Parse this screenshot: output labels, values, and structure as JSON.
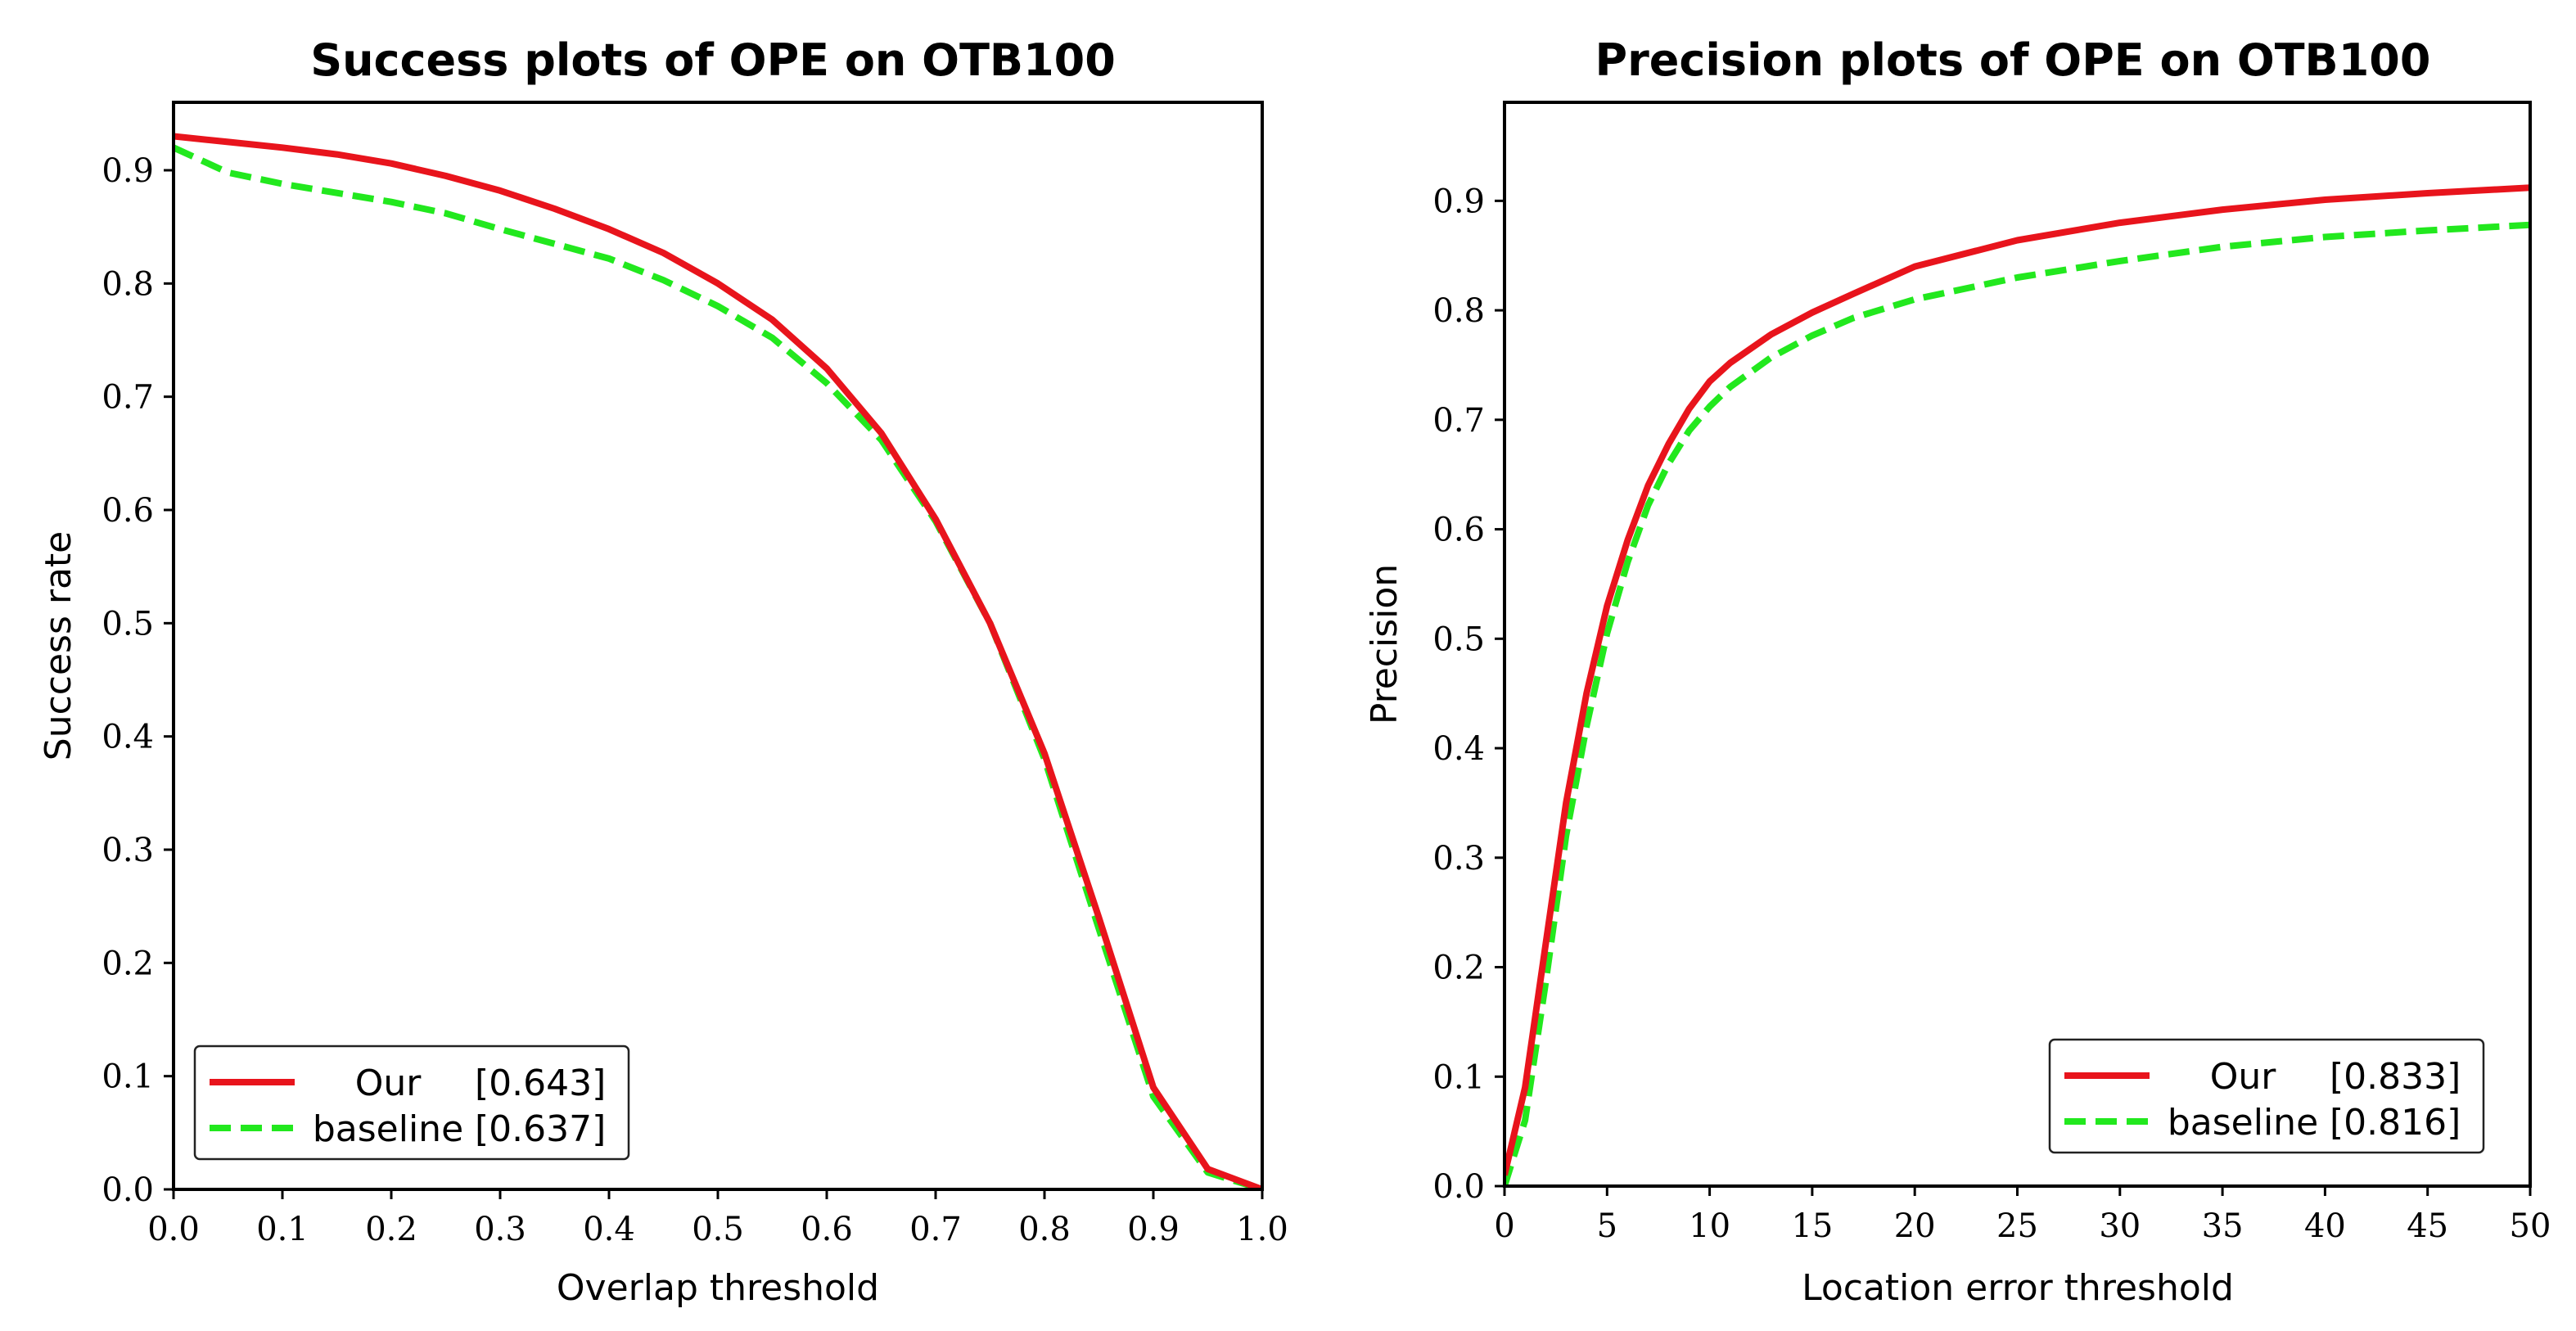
{
  "chart_data": [
    {
      "type": "line",
      "title": "Success plots of OPE on OTB100",
      "xlabel": "Overlap threshold",
      "ylabel": "Success rate",
      "xlim": [
        0,
        1
      ],
      "ylim": [
        0,
        0.96
      ],
      "xticks": [
        0.0,
        0.1,
        0.2,
        0.3,
        0.4,
        0.5,
        0.6,
        0.7,
        0.8,
        0.9,
        1.0
      ],
      "xtick_labels": [
        "0.0",
        "0.1",
        "0.2",
        "0.3",
        "0.4",
        "0.5",
        "0.6",
        "0.7",
        "0.8",
        "0.9",
        "1.0"
      ],
      "yticks": [
        0.0,
        0.1,
        0.2,
        0.3,
        0.4,
        0.5,
        0.6,
        0.7,
        0.8,
        0.9
      ],
      "ytick_labels": [
        "0.0",
        "0.1",
        "0.2",
        "0.3",
        "0.4",
        "0.5",
        "0.6",
        "0.7",
        "0.8",
        "0.9"
      ],
      "legend_position": "lower-left",
      "x": [
        0.0,
        0.05,
        0.1,
        0.15,
        0.2,
        0.25,
        0.3,
        0.35,
        0.4,
        0.45,
        0.5,
        0.55,
        0.6,
        0.65,
        0.7,
        0.75,
        0.8,
        0.85,
        0.9,
        0.95,
        1.0
      ],
      "series": [
        {
          "name": "Our",
          "score": "[0.643]",
          "color": "#e8141c",
          "dash": "solid",
          "values": [
            0.93,
            0.925,
            0.92,
            0.914,
            0.906,
            0.895,
            0.882,
            0.866,
            0.848,
            0.827,
            0.8,
            0.768,
            0.725,
            0.668,
            0.592,
            0.5,
            0.385,
            0.24,
            0.09,
            0.018,
            0.0
          ]
        },
        {
          "name": "baseline",
          "score": "[0.637]",
          "color": "#22e81e",
          "dash": "dashed",
          "values": [
            0.92,
            0.898,
            0.888,
            0.88,
            0.872,
            0.862,
            0.848,
            0.835,
            0.822,
            0.803,
            0.78,
            0.752,
            0.712,
            0.662,
            0.59,
            0.5,
            0.38,
            0.23,
            0.082,
            0.015,
            0.0
          ]
        }
      ]
    },
    {
      "type": "line",
      "title": "Precision plots of OPE on OTB100",
      "xlabel": "Location error threshold",
      "ylabel": "Precision",
      "xlim": [
        0,
        50
      ],
      "ylim": [
        0,
        0.99
      ],
      "xticks": [
        0,
        5,
        10,
        15,
        20,
        25,
        30,
        35,
        40,
        45,
        50
      ],
      "xtick_labels": [
        "0",
        "5",
        "10",
        "15",
        "20",
        "25",
        "30",
        "35",
        "40",
        "45",
        "50"
      ],
      "yticks": [
        0.0,
        0.1,
        0.2,
        0.3,
        0.4,
        0.5,
        0.6,
        0.7,
        0.8,
        0.9
      ],
      "ytick_labels": [
        "0.0",
        "0.1",
        "0.2",
        "0.3",
        "0.4",
        "0.5",
        "0.6",
        "0.7",
        "0.8",
        "0.9"
      ],
      "legend_position": "lower-right",
      "x": [
        0,
        1,
        2,
        3,
        4,
        5,
        6,
        7,
        8,
        9,
        10,
        11,
        13,
        15,
        17,
        20,
        25,
        30,
        35,
        40,
        45,
        50
      ],
      "series": [
        {
          "name": "Our",
          "score": "[0.833]",
          "color": "#e8141c",
          "dash": "solid",
          "values": [
            0.01,
            0.09,
            0.22,
            0.35,
            0.45,
            0.53,
            0.59,
            0.64,
            0.678,
            0.71,
            0.735,
            0.752,
            0.778,
            0.798,
            0.815,
            0.84,
            0.864,
            0.88,
            0.892,
            0.901,
            0.907,
            0.912
          ]
        },
        {
          "name": "baseline",
          "score": "[0.816]",
          "color": "#22e81e",
          "dash": "dashed",
          "values": [
            0.0,
            0.06,
            0.185,
            0.32,
            0.42,
            0.505,
            0.57,
            0.622,
            0.66,
            0.69,
            0.712,
            0.73,
            0.757,
            0.777,
            0.793,
            0.81,
            0.83,
            0.845,
            0.858,
            0.867,
            0.873,
            0.878
          ]
        }
      ]
    }
  ]
}
